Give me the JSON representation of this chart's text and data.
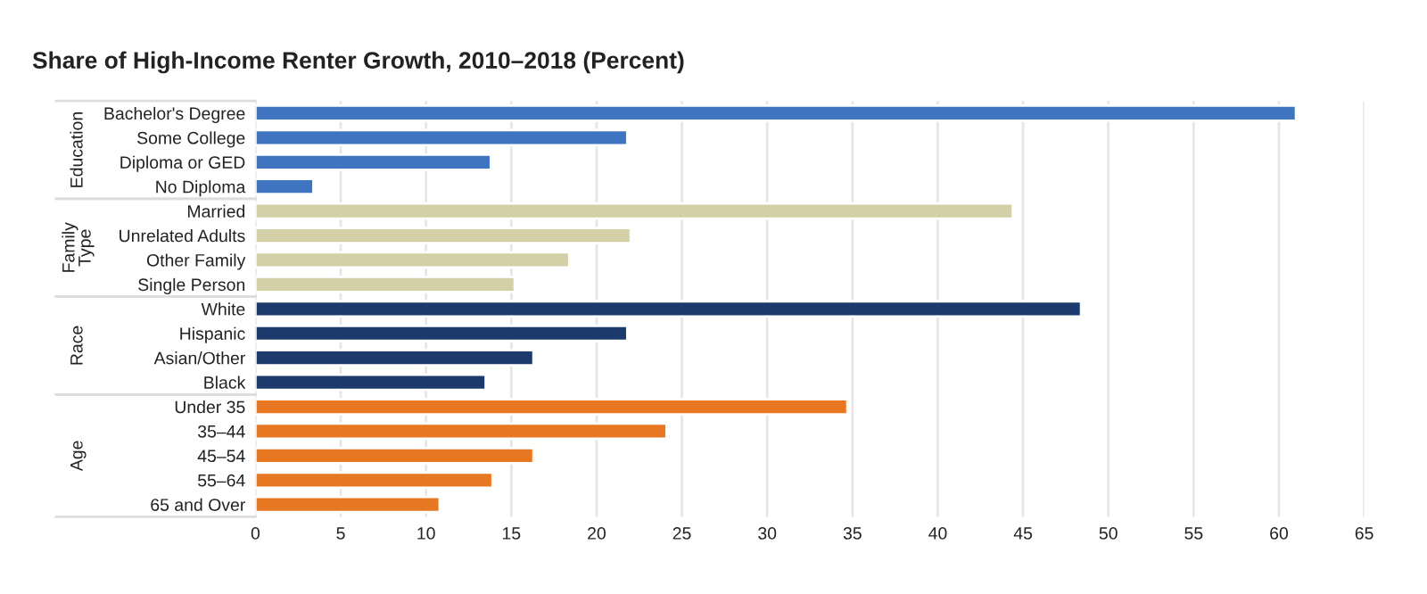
{
  "chart_data": {
    "type": "bar",
    "orientation": "horizontal",
    "title": "Share of High-Income Renter Growth, 2010–2018 (Percent)",
    "categories": [
      "Bachelor's Degree",
      "Some College",
      "Diploma or GED",
      "No Diploma",
      "Married",
      "Unrelated Adults",
      "Other Family",
      "Single Person",
      "White",
      "Hispanic",
      "Asian/Other",
      "Black",
      "Under 35",
      "35–44",
      "45–54",
      "55–64",
      "65 and Over"
    ],
    "series": [
      {
        "color": "#3f74c0",
        "values": [
          61.0,
          21.8,
          13.8,
          3.4,
          null,
          null,
          null,
          null,
          null,
          null,
          null,
          null,
          null,
          null,
          null,
          null,
          null
        ]
      },
      {
        "color": "#d3d0a8",
        "values": [
          null,
          null,
          null,
          null,
          44.4,
          22.0,
          18.4,
          15.2,
          null,
          null,
          null,
          null,
          null,
          null,
          null,
          null,
          null
        ]
      },
      {
        "color": "#1c3a6b",
        "values": [
          null,
          null,
          null,
          null,
          null,
          null,
          null,
          null,
          48.4,
          21.8,
          16.3,
          13.5,
          null,
          null,
          null,
          null,
          null
        ]
      },
      {
        "color": "#e87722",
        "values": [
          null,
          null,
          null,
          null,
          null,
          null,
          null,
          null,
          null,
          null,
          null,
          null,
          34.7,
          24.1,
          16.3,
          13.9,
          10.8
        ]
      }
    ],
    "xlim": [
      0,
      65
    ],
    "xticks": [
      0,
      5,
      10,
      15,
      20,
      25,
      30,
      35,
      40,
      45,
      50,
      55,
      60,
      65
    ],
    "annotations": [
      "Education",
      "Family\nType",
      "Race",
      "Age"
    ],
    "grid": "x"
  }
}
